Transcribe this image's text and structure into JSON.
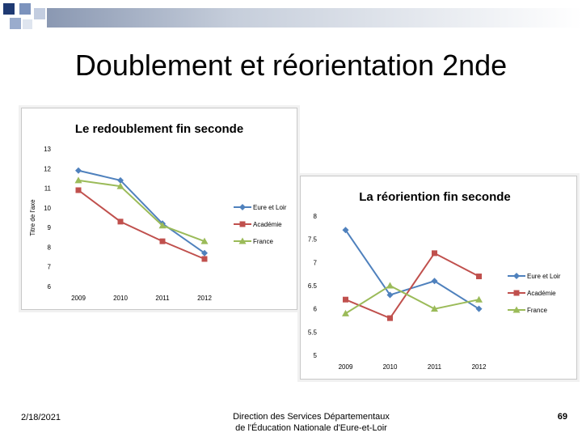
{
  "slide": {
    "title": "Doublement et réorientation 2nde",
    "footer": {
      "date": "2/18/2021",
      "line1": "Direction des Services Départementaux",
      "line2": "de l'Éducation Nationale d'Eure-et-Loir",
      "page": "69"
    }
  },
  "colors": {
    "eure_et_loir": "#4f81bd",
    "academie": "#c0504d",
    "france": "#9bbb59"
  },
  "chart_data": [
    {
      "type": "line",
      "title": "Le redoublement fin seconde",
      "xlabel": "",
      "ylabel": "Titre de l'axe",
      "categories": [
        "2009",
        "2010",
        "2011",
        "2012"
      ],
      "ylim": [
        6,
        13
      ],
      "yticks": [
        "6",
        "7",
        "8",
        "9",
        "10",
        "11",
        "12",
        "13"
      ],
      "legend_position": "right",
      "series": [
        {
          "name": "Eure et Loir",
          "marker": "diamond",
          "values": [
            11.9,
            11.4,
            9.2,
            7.7
          ]
        },
        {
          "name": "Académie",
          "marker": "square",
          "values": [
            10.9,
            9.3,
            8.3,
            7.4
          ]
        },
        {
          "name": "France",
          "marker": "triangle",
          "values": [
            11.4,
            11.1,
            9.1,
            8.3
          ]
        }
      ]
    },
    {
      "type": "line",
      "title": "La réoriention fin seconde",
      "xlabel": "",
      "ylabel": "",
      "categories": [
        "2009",
        "2010",
        "2011",
        "2012"
      ],
      "ylim": [
        5,
        8
      ],
      "yticks": [
        "5",
        "5.5",
        "6",
        "6.5",
        "7",
        "7.5",
        "8"
      ],
      "legend_position": "right",
      "series": [
        {
          "name": "Eure et Loir",
          "marker": "diamond",
          "values": [
            7.7,
            6.3,
            6.6,
            6.0
          ]
        },
        {
          "name": "Académie",
          "marker": "square",
          "values": [
            6.2,
            5.8,
            7.2,
            6.7
          ]
        },
        {
          "name": "France",
          "marker": "triangle",
          "values": [
            5.9,
            6.5,
            6.0,
            6.2
          ]
        }
      ]
    }
  ]
}
